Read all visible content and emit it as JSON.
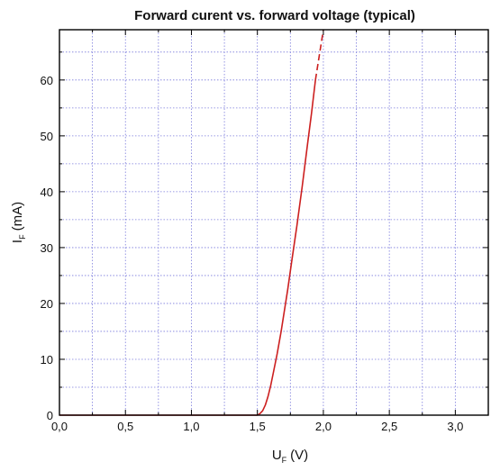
{
  "chart_data": {
    "type": "line",
    "title": "Forward curent vs. forward voltage (typical)",
    "xlabel": {
      "main": "U",
      "sub": "F",
      "unit": "(V)"
    },
    "ylabel": {
      "main": "I",
      "sub": "F",
      "unit": "(mA)"
    },
    "xlim": [
      0,
      3.25
    ],
    "ylim": [
      0,
      69
    ],
    "x_ticks": [
      0,
      0.5,
      1.0,
      1.5,
      2.0,
      2.5,
      3.0
    ],
    "x_tick_labels": [
      "0,0",
      "0,5",
      "1,0",
      "1,5",
      "2,0",
      "2,5",
      "3,0"
    ],
    "y_ticks": [
      0,
      10,
      20,
      30,
      40,
      50,
      60
    ],
    "y_tick_labels": [
      "0",
      "10",
      "20",
      "30",
      "40",
      "50",
      "60"
    ],
    "grid": true,
    "series_color": "#cc1f1f",
    "series": [
      {
        "style": "solid",
        "x": [
          0,
          0.5,
          1.0,
          1.5,
          1.52,
          1.54,
          1.56,
          1.58,
          1.6,
          1.62,
          1.65,
          1.68,
          1.7,
          1.73,
          1.76,
          1.8,
          1.84,
          1.88,
          1.91,
          1.94
        ],
        "y": [
          0,
          0,
          0,
          0,
          0.3,
          0.8,
          1.8,
          3.3,
          5.2,
          7.5,
          11,
          15,
          18,
          22.5,
          27.5,
          34,
          41,
          48.5,
          54,
          60
        ]
      },
      {
        "style": "dashed",
        "x": [
          1.94,
          1.97,
          2.0
        ],
        "y": [
          60,
          64.5,
          69
        ]
      }
    ]
  }
}
